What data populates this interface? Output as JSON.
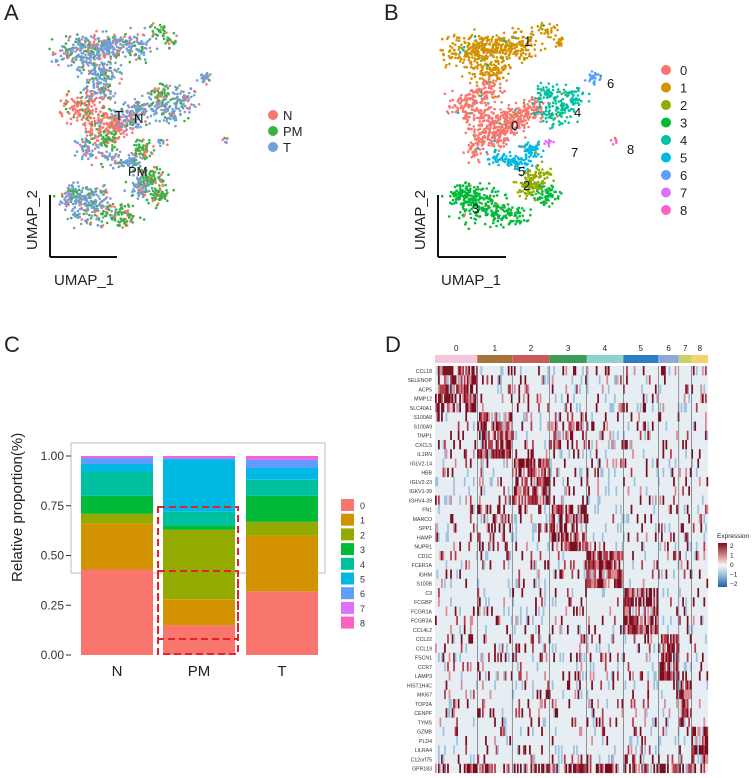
{
  "panels": {
    "a": "A",
    "b": "B",
    "c": "C",
    "d": "D"
  },
  "colors": {
    "clusters": [
      "#F8766D",
      "#D39200",
      "#93AA00",
      "#00BA38",
      "#00C19F",
      "#00B9E3",
      "#619CFF",
      "#DB72FB",
      "#FF61C3"
    ],
    "tissue": {
      "N": "#F8766D",
      "PM": "#3CB044",
      "T": "#6F9FD8"
    }
  },
  "chart_data": [
    {
      "type": "scatter",
      "panel": "A",
      "xlabel": "UMAP_1",
      "ylabel": "UMAP_2",
      "legend": [
        "N",
        "PM",
        "T"
      ],
      "annotations": [
        "T",
        "N",
        "PM"
      ]
    },
    {
      "type": "scatter",
      "panel": "B",
      "xlabel": "UMAP_1",
      "ylabel": "UMAP_2",
      "legend": [
        "0",
        "1",
        "2",
        "3",
        "4",
        "5",
        "6",
        "7",
        "8"
      ],
      "annotations": [
        "1",
        "0",
        "4",
        "6",
        "5",
        "2",
        "3",
        "7",
        "8"
      ]
    },
    {
      "type": "bar",
      "panel": "C",
      "stacked": true,
      "categories": [
        "N",
        "PM",
        "T"
      ],
      "ylabel": "Relative proportion(%)",
      "ylim": [
        0,
        1
      ],
      "yticks": [
        "0.00",
        "0.25",
        "0.50",
        "0.75",
        "1.00"
      ],
      "legend": [
        "0",
        "1",
        "2",
        "3",
        "4",
        "5",
        "6",
        "7",
        "8"
      ],
      "series": [
        {
          "name": "0",
          "values": [
            0.43,
            0.15,
            0.32
          ]
        },
        {
          "name": "1",
          "values": [
            0.23,
            0.13,
            0.28
          ]
        },
        {
          "name": "2",
          "values": [
            0.05,
            0.35,
            0.07
          ]
        },
        {
          "name": "3",
          "values": [
            0.09,
            0.02,
            0.13
          ]
        },
        {
          "name": "4",
          "values": [
            0.12,
            0.07,
            0.08
          ]
        },
        {
          "name": "5",
          "values": [
            0.04,
            0.26,
            0.06
          ]
        },
        {
          "name": "6",
          "values": [
            0.03,
            0.01,
            0.04
          ]
        },
        {
          "name": "7",
          "values": [
            0.005,
            0.003,
            0.01
          ]
        },
        {
          "name": "8",
          "values": [
            0.005,
            0.007,
            0.01
          ]
        }
      ]
    },
    {
      "type": "heatmap",
      "panel": "D",
      "clusters": [
        "0",
        "1",
        "2",
        "3",
        "4",
        "5",
        "6",
        "7",
        "8"
      ],
      "genes": [
        "CCL18",
        "SELENOP",
        "ACP5",
        "MMP12",
        "SLC40A1",
        "S100A8",
        "S100A9",
        "TIMP1",
        "CXCL5",
        "IL1RN",
        "IGLV2-14",
        "HBB",
        "IGLV2-23",
        "IGKV1-39",
        "IGHV4-39",
        "FN1",
        "MARCO",
        "SPP1",
        "HAMP",
        "NUPR1",
        "CD1C",
        "FCER1A",
        "IGHM",
        "S100B",
        "C3",
        "FCGBP",
        "FCGR1A",
        "FCGR3A",
        "CCL4L2",
        "CCL22",
        "CCL19",
        "FSCN1",
        "CCR7",
        "LAMP3",
        "HIST1H4C",
        "MKI67",
        "TOP2A",
        "CENPF",
        "TYMS",
        "GZMB",
        "PLD4",
        "LILRA4",
        "C12orf75",
        "GPR183"
      ],
      "legend_title": "Expression",
      "legend_ticks": [
        "2",
        "1",
        "0",
        "−1",
        "−2"
      ]
    }
  ]
}
